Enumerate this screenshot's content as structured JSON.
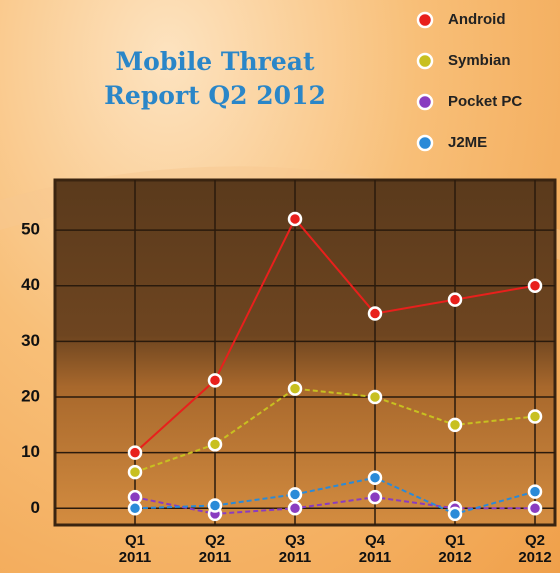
{
  "chart_data": {
    "type": "line",
    "title": "Mobile Threat Report Q2 2012",
    "categories": [
      "Q1 2011",
      "Q2 2011",
      "Q3 2011",
      "Q4 2011",
      "Q1 2012",
      "Q2 2012"
    ],
    "series": [
      {
        "name": "Android",
        "color": "#e8201c",
        "values": [
          10,
          23,
          52,
          35,
          37.5,
          40
        ]
      },
      {
        "name": "Symbian",
        "color": "#c8c020",
        "values": [
          6.5,
          11.5,
          21.5,
          20,
          15,
          16.5
        ]
      },
      {
        "name": "Pocket PC",
        "color": "#8a3cc0",
        "values": [
          2,
          -1,
          0,
          2,
          0,
          0
        ]
      },
      {
        "name": "J2ME",
        "color": "#2a8ad8",
        "values": [
          0,
          0.5,
          2.5,
          5.5,
          -1,
          3
        ]
      }
    ],
    "ylim": [
      -3,
      59
    ],
    "yticks": [
      0,
      10,
      20,
      30,
      40,
      50
    ],
    "grid": true
  }
}
